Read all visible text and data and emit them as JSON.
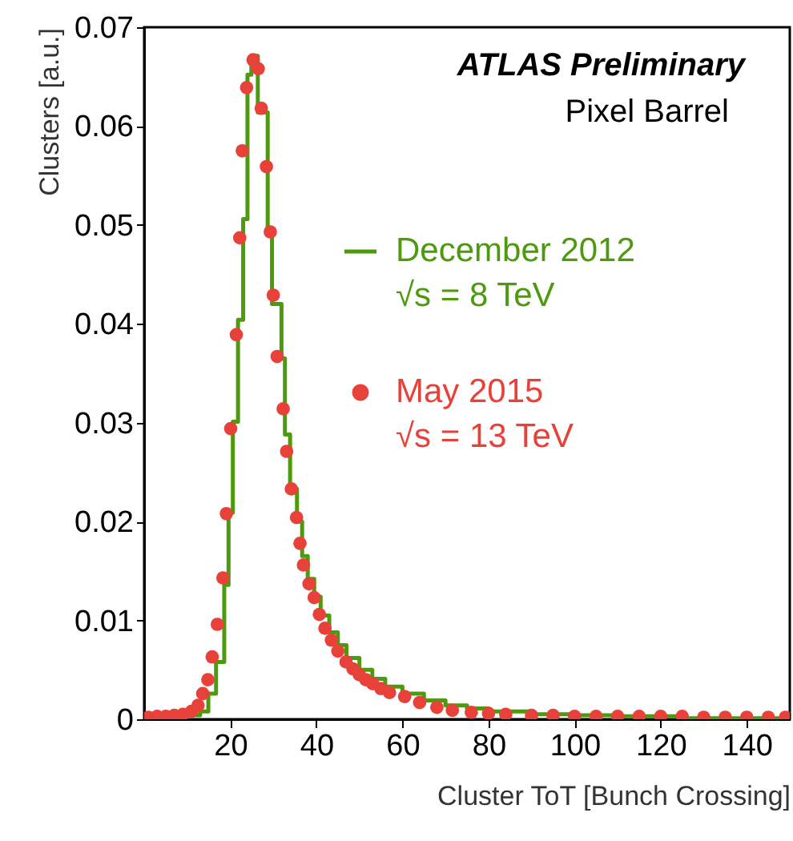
{
  "chart_data": {
    "type": "step",
    "xlabel": "Cluster ToT [Bunch Crossing]",
    "ylabel": "Clusters [a.u.]",
    "xlim": [
      0,
      150
    ],
    "ylim": [
      0,
      0.07
    ],
    "xticks": [
      20,
      40,
      60,
      80,
      100,
      120,
      140
    ],
    "yticks": [
      0,
      0.01,
      0.02,
      0.03,
      0.04,
      0.05,
      0.06,
      0.07
    ],
    "grid": false,
    "legend": "right",
    "annotations": [
      "ATLAS Preliminary",
      "Pixel Barrel"
    ],
    "series": [
      {
        "name": "December 2012\n√s = 8 TeV",
        "color": "#4d9a0f",
        "marker": "none",
        "line_style": "solid",
        "x": [
          0,
          13,
          14.9,
          16.7,
          18.6,
          19.6,
          20.6,
          21.8,
          23.0,
          24.0,
          24.9,
          26.4,
          28.7,
          29.7,
          31.9,
          32.7,
          33.9,
          35.5,
          36.7,
          38,
          39.5,
          41,
          43,
          45,
          47,
          50,
          53,
          56,
          60,
          65,
          70,
          75,
          80,
          90,
          100,
          110,
          125,
          126,
          150
        ],
        "values": [
          0.0004,
          0.0008,
          0.0026,
          0.0058,
          0.0136,
          0.0209,
          0.0301,
          0.0404,
          0.0506,
          0.0652,
          0.0671,
          0.0614,
          0.0493,
          0.042,
          0.0365,
          0.0288,
          0.0233,
          0.02,
          0.0165,
          0.0142,
          0.0124,
          0.0105,
          0.0088,
          0.0075,
          0.0062,
          0.005,
          0.0041,
          0.0033,
          0.0026,
          0.0019,
          0.0014,
          0.0011,
          0.0008,
          0.0005,
          0.0004,
          0.0003,
          0.0003,
          0.0001,
          0.0001
        ]
      },
      {
        "name": "May 2015\n√s = 13 TeV",
        "type": "scatter",
        "color": "#e8413a",
        "marker": "circle",
        "x": [
          1,
          3,
          5,
          7,
          9,
          11,
          12.5,
          13.6,
          14.8,
          15.8,
          17.0,
          18.3,
          19.1,
          20.1,
          21.4,
          22.2,
          22.8,
          23.8,
          25.3,
          26.5,
          27.2,
          28.4,
          29.3,
          30.0,
          30.9,
          32.3,
          33.1,
          34.2,
          35.4,
          36.2,
          37.0,
          38.3,
          39.5,
          40.7,
          42,
          43.5,
          45,
          46.9,
          48.5,
          50,
          51.5,
          53.1,
          55,
          57,
          60.5,
          64,
          68,
          71.6,
          76,
          80,
          84,
          90,
          95,
          100,
          105,
          110,
          115,
          120,
          125,
          130,
          135,
          140,
          145,
          149
        ],
        "values": [
          0.0002,
          0.0003,
          0.0003,
          0.0004,
          0.0005,
          0.0008,
          0.0014,
          0.0026,
          0.004,
          0.0063,
          0.0096,
          0.0143,
          0.0208,
          0.0294,
          0.0389,
          0.0487,
          0.0575,
          0.0639,
          0.0667,
          0.0658,
          0.0618,
          0.0559,
          0.0493,
          0.0429,
          0.0367,
          0.0314,
          0.0271,
          0.0233,
          0.0204,
          0.0178,
          0.0156,
          0.0137,
          0.0123,
          0.0106,
          0.0092,
          0.008,
          0.0069,
          0.0058,
          0.0051,
          0.0045,
          0.004,
          0.0036,
          0.0031,
          0.0027,
          0.0023,
          0.0017,
          0.0012,
          0.0009,
          0.0007,
          0.0006,
          0.0005,
          0.0004,
          0.0004,
          0.0003,
          0.0003,
          0.0003,
          0.0003,
          0.0003,
          0.0003,
          0.0002,
          0.0002,
          0.0002,
          0.0002,
          0.0002
        ]
      }
    ]
  }
}
